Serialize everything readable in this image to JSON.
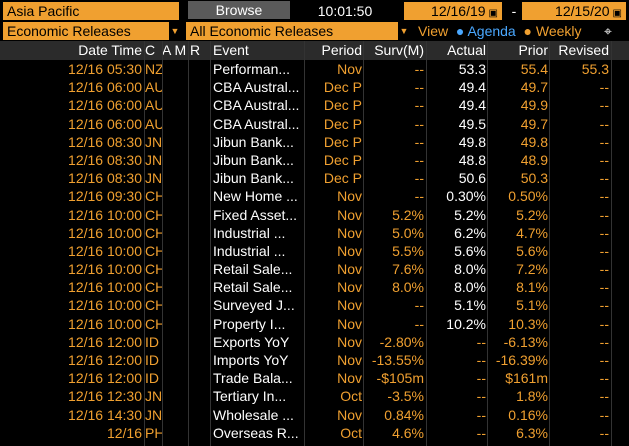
{
  "topbar": {
    "region": "Asia Pacific",
    "browse": "Browse",
    "clock": "10:01:50",
    "start_date": "12/16/19",
    "end_date": "12/15/20",
    "dash": "-"
  },
  "filters": {
    "category": "Economic Releases",
    "subcategory": "All Economic Releases",
    "view_label": "View",
    "agenda": "Agenda",
    "weekly": "Weekly"
  },
  "columns": {
    "date": "Date Time",
    "country": "C",
    "am": "A M",
    "r": "R",
    "event": "Event",
    "period": "Period",
    "survey": "Surv(M)",
    "actual": "Actual",
    "prior": "Prior",
    "revised": "Revised"
  },
  "rows": [
    {
      "date": "12/16 05:30",
      "country": "NZ",
      "alarm": true,
      "rel": 1,
      "event": "Performan...",
      "period": "Nov",
      "survey": "--",
      "actual": "53.3",
      "prior": "55.4",
      "revised": "55.3"
    },
    {
      "date": "12/16 06:00",
      "country": "AU",
      "alarm": true,
      "rel": 1,
      "event": "CBA Austral...",
      "period": "Dec P",
      "survey": "--",
      "actual": "49.4",
      "prior": "49.7",
      "revised": "--"
    },
    {
      "date": "12/16 06:00",
      "country": "AU",
      "alarm": true,
      "rel": 1,
      "event": "CBA Austral...",
      "period": "Dec P",
      "survey": "--",
      "actual": "49.4",
      "prior": "49.9",
      "revised": "--"
    },
    {
      "date": "12/16 06:00",
      "country": "AU",
      "alarm": true,
      "rel": 1,
      "event": "CBA Austral...",
      "period": "Dec P",
      "survey": "--",
      "actual": "49.5",
      "prior": "49.7",
      "revised": "--"
    },
    {
      "date": "12/16 08:30",
      "country": "JN",
      "alarm": true,
      "rel": 3,
      "event": "Jibun Bank...",
      "period": "Dec P",
      "survey": "--",
      "actual": "49.8",
      "prior": "49.8",
      "revised": "--"
    },
    {
      "date": "12/16 08:30",
      "country": "JN",
      "alarm": true,
      "rel": 3,
      "event": "Jibun Bank...",
      "period": "Dec P",
      "survey": "--",
      "actual": "48.8",
      "prior": "48.9",
      "revised": "--"
    },
    {
      "date": "12/16 08:30",
      "country": "JN",
      "alarm": true,
      "rel": 3,
      "event": "Jibun Bank...",
      "period": "Dec P",
      "survey": "--",
      "actual": "50.6",
      "prior": "50.3",
      "revised": "--"
    },
    {
      "date": "12/16 09:30",
      "country": "CH",
      "alarm": true,
      "rel": 1,
      "event": "New Home ...",
      "period": "Nov",
      "survey": "--",
      "actual": "0.30%",
      "prior": "0.50%",
      "revised": "--"
    },
    {
      "date": "12/16 10:00",
      "country": "CH",
      "alarm": true,
      "rel": 4,
      "event": "Fixed Asset...",
      "period": "Nov",
      "survey": "5.2%",
      "actual": "5.2%",
      "prior": "5.2%",
      "revised": "--"
    },
    {
      "date": "12/16 10:00",
      "country": "CH",
      "alarm": true,
      "rel": 4,
      "event": "Industrial ...",
      "period": "Nov",
      "survey": "5.0%",
      "actual": "6.2%",
      "prior": "4.7%",
      "revised": "--"
    },
    {
      "date": "12/16 10:00",
      "country": "CH",
      "alarm": true,
      "rel": 4,
      "event": "Industrial ...",
      "period": "Nov",
      "survey": "5.5%",
      "actual": "5.6%",
      "prior": "5.6%",
      "revised": "--"
    },
    {
      "date": "12/16 10:00",
      "country": "CH",
      "alarm": true,
      "rel": 4,
      "event": "Retail Sale...",
      "period": "Nov",
      "survey": "7.6%",
      "actual": "8.0%",
      "prior": "7.2%",
      "revised": "--"
    },
    {
      "date": "12/16 10:00",
      "country": "CH",
      "alarm": true,
      "rel": 4,
      "event": "Retail Sale...",
      "period": "Nov",
      "survey": "8.0%",
      "actual": "8.0%",
      "prior": "8.1%",
      "revised": "--"
    },
    {
      "date": "12/16 10:00",
      "country": "CH",
      "alarm": true,
      "rel": 1,
      "event": "Surveyed J...",
      "period": "Nov",
      "survey": "--",
      "actual": "5.1%",
      "prior": "5.1%",
      "revised": "--"
    },
    {
      "date": "12/16 10:00",
      "country": "CH",
      "alarm": true,
      "rel": 1,
      "event": "Property I...",
      "period": "Nov",
      "survey": "--",
      "actual": "10.2%",
      "prior": "10.3%",
      "revised": "--"
    },
    {
      "date": "12/16 12:00",
      "country": "ID",
      "alarm": true,
      "rel": 3,
      "event": "Exports YoY",
      "period": "Nov",
      "survey": "-2.80%",
      "actual": "--",
      "prior": "-6.13%",
      "revised": "--"
    },
    {
      "date": "12/16 12:00",
      "country": "ID",
      "alarm": true,
      "rel": 3,
      "event": "Imports YoY",
      "period": "Nov",
      "survey": "-13.55%",
      "actual": "--",
      "prior": "-16.39%",
      "revised": "--"
    },
    {
      "date": "12/16 12:00",
      "country": "ID",
      "alarm": true,
      "rel": 3,
      "event": "Trade Bala...",
      "period": "Nov",
      "survey": "-$105m",
      "actual": "--",
      "prior": "$161m",
      "revised": "--"
    },
    {
      "date": "12/16 12:30",
      "country": "JN",
      "alarm": true,
      "rel": 3,
      "event": "Tertiary In...",
      "period": "Oct",
      "survey": "-3.5%",
      "actual": "--",
      "prior": "1.8%",
      "revised": "--"
    },
    {
      "date": "12/16 14:30",
      "country": "JN",
      "alarm": true,
      "rel": 3,
      "event": "Wholesale ...",
      "period": "Nov",
      "survey": "0.84%",
      "actual": "--",
      "prior": "0.16%",
      "revised": "--"
    },
    {
      "date": "12/16",
      "country": "PH",
      "alarm": true,
      "rel": 4,
      "event": "Overseas R...",
      "period": "Oct",
      "survey": "4.6%",
      "actual": "--",
      "prior": "6.3%",
      "revised": "--"
    }
  ]
}
